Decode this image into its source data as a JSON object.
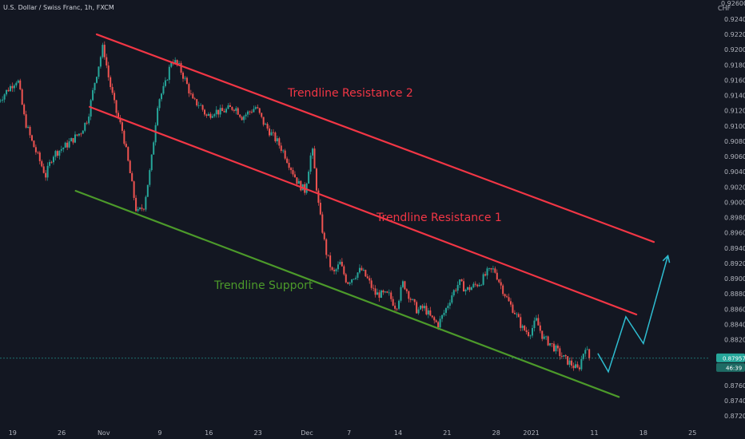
{
  "header": {
    "symbol_line": "U.S. Dollar / Swiss Franc, 1h, FXCM"
  },
  "chart_data": {
    "type": "candlestick",
    "currency_label": "CHF",
    "y_axis": {
      "ylim": [
        0.8715,
        0.9265
      ],
      "ticks": [
        "0.92400",
        "0.92200",
        "0.92000",
        "0.91800",
        "0.91600",
        "0.91400",
        "0.91200",
        "0.91000",
        "0.90800",
        "0.90600",
        "0.90400",
        "0.90200",
        "0.90000",
        "0.89800",
        "0.89600",
        "0.89400",
        "0.89200",
        "0.89000",
        "0.88800",
        "0.88600",
        "0.88400",
        "0.88200",
        "0.87600",
        "0.87400",
        "0.87200"
      ],
      "top_partial_tick": "0.92600"
    },
    "x_axis": {
      "ticks": [
        {
          "label": "19",
          "day": 0
        },
        {
          "label": "26",
          "day": 7
        },
        {
          "label": "Nov",
          "day": 13
        },
        {
          "label": "9",
          "day": 21
        },
        {
          "label": "16",
          "day": 28
        },
        {
          "label": "23",
          "day": 35
        },
        {
          "label": "Dec",
          "day": 42
        },
        {
          "label": "7",
          "day": 48
        },
        {
          "label": "14",
          "day": 55
        },
        {
          "label": "21",
          "day": 62
        },
        {
          "label": "28",
          "day": 69
        },
        {
          "label": "2021",
          "day": 74
        },
        {
          "label": "11",
          "day": 83
        },
        {
          "label": "18",
          "day": 90
        },
        {
          "label": "25",
          "day": 97
        }
      ],
      "day_range": [
        -1.8,
        104.5
      ]
    },
    "price_path": [
      [
        -2,
        0.913
      ],
      [
        0,
        0.9152
      ],
      [
        1,
        0.9162
      ],
      [
        2,
        0.9108
      ],
      [
        3,
        0.908
      ],
      [
        5,
        0.9035
      ],
      [
        6,
        0.9062
      ],
      [
        8,
        0.9075
      ],
      [
        10,
        0.9092
      ],
      [
        11,
        0.911
      ],
      [
        12,
        0.9158
      ],
      [
        13.2,
        0.9205
      ],
      [
        14,
        0.9162
      ],
      [
        15,
        0.912
      ],
      [
        16,
        0.9092
      ],
      [
        17,
        0.904
      ],
      [
        18,
        0.8985
      ],
      [
        19,
        0.8995
      ],
      [
        20,
        0.9048
      ],
      [
        21,
        0.9132
      ],
      [
        22,
        0.9152
      ],
      [
        23,
        0.9188
      ],
      [
        24,
        0.9178
      ],
      [
        25,
        0.9158
      ],
      [
        26,
        0.9132
      ],
      [
        27,
        0.9128
      ],
      [
        28,
        0.9112
      ],
      [
        29,
        0.912
      ],
      [
        30,
        0.9118
      ],
      [
        31,
        0.9122
      ],
      [
        32,
        0.9125
      ],
      [
        33,
        0.9112
      ],
      [
        34,
        0.9118
      ],
      [
        35,
        0.9125
      ],
      [
        36,
        0.9105
      ],
      [
        37,
        0.9092
      ],
      [
        38,
        0.908
      ],
      [
        39,
        0.9065
      ],
      [
        40,
        0.9045
      ],
      [
        41,
        0.9025
      ],
      [
        42,
        0.9015
      ],
      [
        43,
        0.9072
      ],
      [
        44,
        0.899
      ],
      [
        45,
        0.8935
      ],
      [
        46,
        0.8905
      ],
      [
        47,
        0.892
      ],
      [
        48,
        0.8895
      ],
      [
        50,
        0.8912
      ],
      [
        51,
        0.8898
      ],
      [
        52,
        0.888
      ],
      [
        54,
        0.8878
      ],
      [
        55,
        0.8862
      ],
      [
        56,
        0.8895
      ],
      [
        57,
        0.8875
      ],
      [
        58,
        0.8858
      ],
      [
        59,
        0.8862
      ],
      [
        60,
        0.8848
      ],
      [
        61,
        0.884
      ],
      [
        62,
        0.8858
      ],
      [
        63,
        0.888
      ],
      [
        64,
        0.8895
      ],
      [
        65,
        0.8885
      ],
      [
        66,
        0.889
      ],
      [
        67,
        0.8895
      ],
      [
        68,
        0.8908
      ],
      [
        69,
        0.8912
      ],
      [
        70,
        0.889
      ],
      [
        71,
        0.887
      ],
      [
        72,
        0.8855
      ],
      [
        73,
        0.8835
      ],
      [
        74,
        0.8828
      ],
      [
        75,
        0.8845
      ],
      [
        76,
        0.8822
      ],
      [
        77,
        0.8815
      ],
      [
        78,
        0.8805
      ],
      [
        79,
        0.8795
      ],
      [
        80,
        0.8788
      ],
      [
        81,
        0.878
      ],
      [
        82,
        0.8812
      ],
      [
        82.5,
        0.8796
      ]
    ],
    "projection_path": [
      [
        83.5,
        0.8802
      ],
      [
        85,
        0.8778
      ],
      [
        87.5,
        0.885
      ],
      [
        90,
        0.8815
      ],
      [
        93.5,
        0.893
      ]
    ],
    "trendlines": [
      {
        "name": "Trendline Resistance 2",
        "color": "#f23645",
        "points": [
          [
            12,
            0.922
          ],
          [
            91.5,
            0.8948
          ]
        ]
      },
      {
        "name": "Trendline Resistance 1",
        "color": "#f23645",
        "points": [
          [
            11,
            0.9125
          ],
          [
            89,
            0.8853
          ]
        ]
      },
      {
        "name": "Trendline Support",
        "color": "#4c9a2a",
        "points": [
          [
            9,
            0.9015
          ],
          [
            86.5,
            0.8745
          ]
        ]
      }
    ],
    "annotations": [
      {
        "text": "Trendline Resistance 2",
        "color": "#f23645"
      },
      {
        "text": "Trendline Resistance 1",
        "color": "#f23645"
      },
      {
        "text": "Trendline Support",
        "color": "#4c9a2a"
      }
    ],
    "current_price": {
      "value": "0.87957",
      "level": 0.87957,
      "color": "#26a69a"
    },
    "countdown_label": "46:39",
    "colors": {
      "up": "#26a69a",
      "down": "#ef5350",
      "projection": "#2ebdd1",
      "background": "#131722"
    }
  }
}
